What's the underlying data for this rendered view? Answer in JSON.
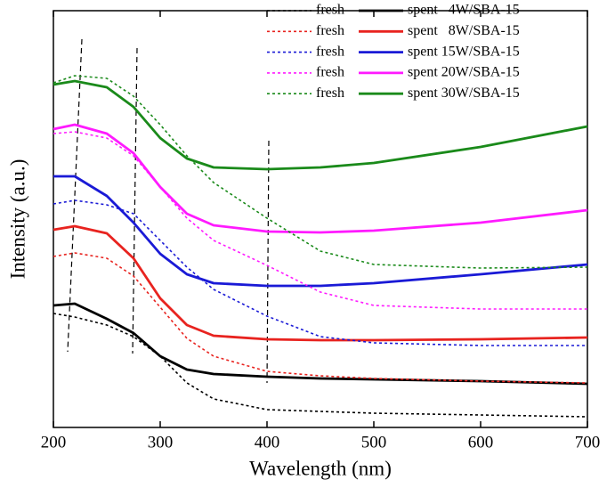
{
  "chart_data": {
    "type": "line",
    "xlabel": "Wavelength (nm)",
    "ylabel": "Intensity (a.u.)",
    "x": [
      200,
      220,
      250,
      275,
      300,
      325,
      350,
      400,
      450,
      500,
      600,
      700
    ],
    "xlim": [
      200,
      700
    ],
    "xticks": [
      200,
      300,
      400,
      500,
      600,
      700
    ],
    "ylim": [
      0,
      470
    ],
    "series": [
      {
        "name": "fresh",
        "color": "#000000",
        "style": "dotted",
        "values": [
          128,
          124,
          115,
          102,
          80,
          50,
          32,
          20,
          18,
          16,
          14,
          12
        ]
      },
      {
        "name": "spent   4W/SBA-15",
        "color": "#000000",
        "style": "solid",
        "values": [
          137,
          139,
          122,
          106,
          80,
          65,
          60,
          57,
          55,
          54,
          52,
          49
        ]
      },
      {
        "name": "fresh",
        "color": "#e8231f",
        "style": "dotted",
        "values": [
          192,
          196,
          190,
          170,
          135,
          100,
          80,
          63,
          58,
          55,
          52,
          50
        ]
      },
      {
        "name": "spent   8W/SBA-15",
        "color": "#e8231f",
        "style": "solid",
        "values": [
          222,
          226,
          218,
          190,
          145,
          115,
          103,
          99,
          98,
          98,
          99,
          101
        ]
      },
      {
        "name": "fresh",
        "color": "#1a1ad6",
        "style": "dotted",
        "values": [
          251,
          255,
          250,
          240,
          210,
          180,
          155,
          125,
          102,
          95,
          92,
          92
        ]
      },
      {
        "name": "spent 15W/SBA-15",
        "color": "#1a1ad6",
        "style": "solid",
        "values": [
          282,
          282,
          260,
          230,
          195,
          172,
          162,
          159,
          159,
          162,
          172,
          183
        ]
      },
      {
        "name": "fresh",
        "color": "#ff1aff",
        "style": "dotted",
        "values": [
          330,
          332,
          325,
          305,
          270,
          235,
          210,
          182,
          152,
          137,
          133,
          133
        ]
      },
      {
        "name": "spent 20W/SBA-15",
        "color": "#ff1aff",
        "style": "solid",
        "values": [
          335,
          340,
          330,
          308,
          270,
          240,
          227,
          220,
          219,
          221,
          230,
          244
        ]
      },
      {
        "name": "fresh",
        "color": "#1a8a1a",
        "style": "dotted",
        "values": [
          387,
          395,
          392,
          372,
          340,
          305,
          275,
          235,
          198,
          183,
          179,
          180
        ]
      },
      {
        "name": "spent 30W/SBA-15",
        "color": "#1a8a1a",
        "style": "solid",
        "values": [
          385,
          389,
          382,
          360,
          325,
          302,
          292,
          290,
          292,
          297,
          315,
          338
        ]
      }
    ]
  }
}
